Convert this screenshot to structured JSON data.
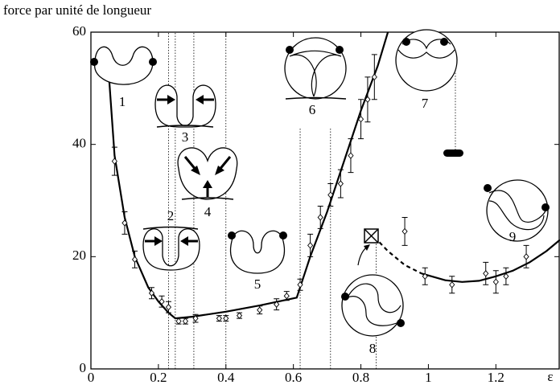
{
  "chart_data": {
    "type": "scatter",
    "y_label": "force par unité de longueur",
    "x_label": "ε",
    "xlim": [
      0,
      1.39
    ],
    "ylim": [
      0,
      60
    ],
    "xticks": [
      0,
      0.2,
      0.4,
      0.6,
      0.8,
      1,
      1.2
    ],
    "yticks": [
      0,
      20,
      40,
      60
    ],
    "color": "#000000",
    "x": [
      0.07,
      0.1,
      0.13,
      0.18,
      0.21,
      0.23,
      0.26,
      0.28,
      0.31,
      0.38,
      0.4,
      0.44,
      0.5,
      0.55,
      0.58,
      0.62,
      0.65,
      0.68,
      0.71,
      0.74,
      0.77,
      0.8,
      0.82,
      0.84,
      0.93,
      0.99,
      1.07,
      1.17,
      1.2,
      1.23,
      1.29
    ],
    "values": [
      37,
      26,
      19.5,
      13.5,
      12,
      11,
      8.5,
      8.5,
      9,
      9,
      9,
      9.5,
      10.5,
      11.5,
      13,
      15,
      22,
      27,
      31,
      33,
      38,
      44.5,
      48,
      52,
      24.5,
      16.5,
      15,
      17,
      15.5,
      16.5,
      20
    ],
    "errors": [
      2.5,
      2,
      1.5,
      1,
      1,
      1,
      0.5,
      0.5,
      0.7,
      0.5,
      0.5,
      0.5,
      0.7,
      1,
      0.8,
      1,
      2,
      2,
      2,
      2.5,
      3,
      3.5,
      4,
      4,
      2.5,
      1.5,
      1.5,
      2,
      2,
      1.5,
      2
    ],
    "curves": [
      {
        "dashed": false,
        "x": [
          0.05,
          0.07,
          0.1,
          0.13,
          0.17,
          0.2,
          0.23,
          0.25,
          0.3,
          0.4,
          0.5,
          0.61,
          0.65,
          0.7,
          0.75,
          0.8,
          0.85,
          0.88
        ],
        "y": [
          55,
          38,
          27,
          20,
          14.5,
          12,
          10,
          9,
          9.3,
          10.2,
          11.3,
          12.7,
          20,
          28,
          37,
          46,
          54,
          60
        ]
      },
      {
        "dashed": true,
        "x": [
          0.84,
          0.88,
          0.93,
          0.98
        ],
        "y": [
          23.5,
          21,
          18.5,
          17
        ]
      },
      {
        "dashed": false,
        "x": [
          0.98,
          1.05,
          1.1,
          1.15,
          1.2,
          1.25,
          1.3,
          1.35,
          1.39
        ],
        "y": [
          17,
          15.8,
          15.5,
          15.7,
          16.5,
          17.5,
          19,
          21,
          23
        ]
      }
    ],
    "vlines": [
      {
        "x": 0.23,
        "y": [
          0,
          60
        ]
      },
      {
        "x": 0.25,
        "y": [
          0,
          60
        ]
      },
      {
        "x": 0.305,
        "y": [
          0,
          60
        ]
      },
      {
        "x": 0.4,
        "y": [
          0,
          60
        ]
      },
      {
        "x": 0.62,
        "y": [
          0,
          43
        ]
      },
      {
        "x": 0.71,
        "y": [
          0,
          43
        ]
      },
      {
        "x": 0.845,
        "y": [
          0,
          23
        ]
      },
      {
        "x": 1.08,
        "y": [
          38.5,
          55
        ]
      }
    ],
    "annotations": [
      "1",
      "2",
      "3",
      "4",
      "5",
      "6",
      "7",
      "8",
      "9"
    ]
  }
}
